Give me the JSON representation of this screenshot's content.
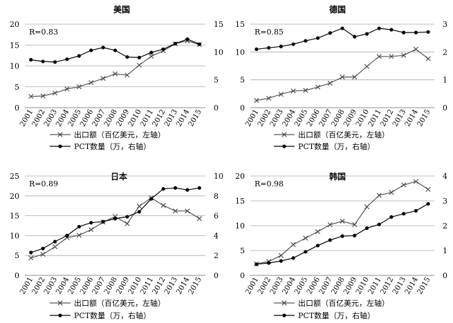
{
  "chart_data": [
    {
      "type": "line",
      "title": "美国",
      "annotation": "R=0.83",
      "categories": [
        "2001",
        "2002",
        "2003",
        "2004",
        "2005",
        "2006",
        "2007",
        "2008",
        "2009",
        "2010",
        "2011",
        "2012",
        "2013",
        "2014",
        "2015"
      ],
      "ylim_left": [
        0,
        20
      ],
      "yticks_left": [
        "0",
        "5",
        "10",
        "15",
        "20"
      ],
      "ylim_right": [
        0,
        15
      ],
      "yticks_right": [
        "0",
        "5",
        "10",
        "15"
      ],
      "series": [
        {
          "name": "出口额（百亿美元，左轴）",
          "axis": "left",
          "marker": "x",
          "values": [
            2.7,
            2.8,
            3.5,
            4.5,
            5.0,
            6.0,
            7.0,
            8.1,
            7.8,
            10.2,
            12.3,
            13.6,
            15.3,
            16.0,
            15.1
          ]
        },
        {
          "name": "PCT数量（万，右轴）",
          "axis": "right",
          "marker": "dot",
          "values": [
            8.6,
            8.3,
            8.2,
            8.7,
            9.3,
            10.3,
            10.8,
            10.3,
            9.1,
            9.0,
            9.9,
            10.5,
            11.5,
            12.3,
            11.4
          ]
        }
      ],
      "grid": true,
      "legend": "below"
    },
    {
      "type": "line",
      "title": "德国",
      "annotation": "R=0.85",
      "categories": [
        "2001",
        "2002",
        "2003",
        "2004",
        "2005",
        "2006",
        "2007",
        "2008",
        "2009",
        "2010",
        "2011",
        "2012",
        "2013",
        "2014",
        "2015"
      ],
      "ylim_left": [
        0,
        15
      ],
      "yticks_left": [
        "0",
        "5",
        "10",
        "15"
      ],
      "ylim_right": [
        0,
        3
      ],
      "yticks_right": [
        "0",
        "1",
        "2",
        "3"
      ],
      "series": [
        {
          "name": "出口额（百亿美元，左轴）",
          "axis": "left",
          "marker": "x",
          "values": [
            1.3,
            1.7,
            2.4,
            3.0,
            3.1,
            3.7,
            4.4,
            5.5,
            5.5,
            7.4,
            9.2,
            9.2,
            9.4,
            10.5,
            8.8
          ]
        },
        {
          "name": "PCT数量（万，右轴）",
          "axis": "right",
          "marker": "dot",
          "values": [
            2.1,
            2.15,
            2.2,
            2.28,
            2.4,
            2.5,
            2.68,
            2.85,
            2.55,
            2.65,
            2.85,
            2.8,
            2.7,
            2.7,
            2.72
          ]
        }
      ],
      "grid": true,
      "legend": "below"
    },
    {
      "type": "line",
      "title": "日本",
      "annotation": "R=0.89",
      "categories": [
        "2001",
        "2002",
        "2003",
        "2004",
        "2005",
        "2006",
        "2007",
        "2008",
        "2009",
        "2010",
        "2011",
        "2012",
        "2013",
        "2014",
        "2015"
      ],
      "ylim_left": [
        0,
        25
      ],
      "yticks_left": [
        "0",
        "5",
        "10",
        "15",
        "20",
        "25"
      ],
      "ylim_right": [
        0,
        10
      ],
      "yticks_right": [
        "0",
        "2",
        "4",
        "6",
        "8",
        "10"
      ],
      "series": [
        {
          "name": "出口额（百亿美元，左轴）",
          "axis": "left",
          "marker": "x",
          "values": [
            4.4,
            5.3,
            7.2,
            9.5,
            10.1,
            11.5,
            13.4,
            14.8,
            13.0,
            17.4,
            19.5,
            17.6,
            16.2,
            16.2,
            14.3
          ]
        },
        {
          "name": "PCT数量（万，右轴）",
          "axis": "right",
          "marker": "dot",
          "values": [
            2.3,
            2.7,
            3.4,
            4.0,
            4.9,
            5.3,
            5.4,
            5.7,
            5.9,
            6.4,
            7.7,
            8.7,
            8.8,
            8.6,
            8.8
          ]
        }
      ],
      "grid": true,
      "legend": "below"
    },
    {
      "type": "line",
      "title": "韩国",
      "annotation": "R=0.98",
      "categories": [
        "2001",
        "2002",
        "2003",
        "2004",
        "2005",
        "2006",
        "2007",
        "2008",
        "2009",
        "2010",
        "2011",
        "2012",
        "2013",
        "2014",
        "2015"
      ],
      "ylim_left": [
        0,
        20
      ],
      "yticks_left": [
        "0",
        "5",
        "10",
        "15",
        "20"
      ],
      "ylim_right": [
        0,
        4
      ],
      "yticks_right": [
        "0",
        "1",
        "2",
        "3",
        "4"
      ],
      "series": [
        {
          "name": "出口额（百亿美元，左轴）",
          "axis": "left",
          "marker": "x",
          "values": [
            2.3,
            2.8,
            4.0,
            6.2,
            7.5,
            8.8,
            10.2,
            10.9,
            10.2,
            13.8,
            16.1,
            16.7,
            18.2,
            18.9,
            17.3
          ]
        },
        {
          "name": "PCT数量（万，右轴）",
          "axis": "right",
          "marker": "dot",
          "values": [
            0.45,
            0.5,
            0.58,
            0.7,
            0.95,
            1.2,
            1.42,
            1.58,
            1.6,
            1.9,
            2.05,
            2.35,
            2.48,
            2.6,
            2.88
          ]
        }
      ],
      "grid": true,
      "legend": "below"
    }
  ]
}
